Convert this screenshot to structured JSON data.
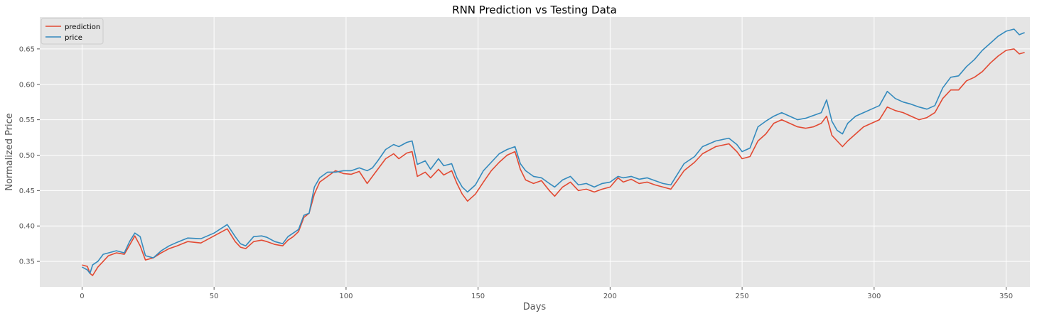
{
  "chart_data": {
    "type": "line",
    "title": "RNN Prediction vs Testing Data",
    "xlabel": "Days",
    "ylabel": "Normalized Price",
    "xlim": [
      -16,
      359
    ],
    "ylim": [
      0.314,
      0.695
    ],
    "xticks": [
      0,
      50,
      100,
      150,
      200,
      250,
      300,
      350
    ],
    "yticks": [
      0.35,
      0.4,
      0.45,
      0.5,
      0.55,
      0.6,
      0.65
    ],
    "grid": true,
    "legend": "top-left",
    "series": [
      {
        "name": "prediction",
        "color": "#E24A33",
        "points": [
          [
            0,
            0.345
          ],
          [
            2,
            0.343
          ],
          [
            3,
            0.333
          ],
          [
            4,
            0.33
          ],
          [
            6,
            0.342
          ],
          [
            8,
            0.35
          ],
          [
            10,
            0.358
          ],
          [
            13,
            0.362
          ],
          [
            16,
            0.36
          ],
          [
            18,
            0.373
          ],
          [
            20,
            0.386
          ],
          [
            22,
            0.372
          ],
          [
            24,
            0.352
          ],
          [
            27,
            0.355
          ],
          [
            30,
            0.362
          ],
          [
            33,
            0.368
          ],
          [
            36,
            0.372
          ],
          [
            40,
            0.378
          ],
          [
            45,
            0.376
          ],
          [
            50,
            0.386
          ],
          [
            55,
            0.396
          ],
          [
            58,
            0.378
          ],
          [
            60,
            0.37
          ],
          [
            62,
            0.368
          ],
          [
            65,
            0.378
          ],
          [
            68,
            0.38
          ],
          [
            70,
            0.378
          ],
          [
            73,
            0.374
          ],
          [
            76,
            0.372
          ],
          [
            78,
            0.38
          ],
          [
            80,
            0.385
          ],
          [
            82,
            0.392
          ],
          [
            84,
            0.412
          ],
          [
            86,
            0.418
          ],
          [
            88,
            0.445
          ],
          [
            90,
            0.462
          ],
          [
            93,
            0.47
          ],
          [
            96,
            0.478
          ],
          [
            99,
            0.474
          ],
          [
            102,
            0.473
          ],
          [
            105,
            0.477
          ],
          [
            108,
            0.46
          ],
          [
            110,
            0.47
          ],
          [
            112,
            0.48
          ],
          [
            115,
            0.495
          ],
          [
            118,
            0.502
          ],
          [
            120,
            0.495
          ],
          [
            123,
            0.503
          ],
          [
            125,
            0.505
          ],
          [
            127,
            0.47
          ],
          [
            130,
            0.476
          ],
          [
            132,
            0.468
          ],
          [
            135,
            0.48
          ],
          [
            137,
            0.472
          ],
          [
            140,
            0.478
          ],
          [
            142,
            0.46
          ],
          [
            144,
            0.445
          ],
          [
            146,
            0.435
          ],
          [
            149,
            0.445
          ],
          [
            152,
            0.462
          ],
          [
            155,
            0.478
          ],
          [
            158,
            0.49
          ],
          [
            161,
            0.5
          ],
          [
            164,
            0.505
          ],
          [
            166,
            0.48
          ],
          [
            168,
            0.465
          ],
          [
            171,
            0.46
          ],
          [
            174,
            0.464
          ],
          [
            177,
            0.45
          ],
          [
            179,
            0.442
          ],
          [
            182,
            0.455
          ],
          [
            185,
            0.462
          ],
          [
            188,
            0.45
          ],
          [
            191,
            0.452
          ],
          [
            194,
            0.448
          ],
          [
            197,
            0.452
          ],
          [
            200,
            0.455
          ],
          [
            203,
            0.468
          ],
          [
            205,
            0.462
          ],
          [
            208,
            0.466
          ],
          [
            211,
            0.46
          ],
          [
            214,
            0.462
          ],
          [
            217,
            0.458
          ],
          [
            220,
            0.455
          ],
          [
            223,
            0.452
          ],
          [
            225,
            0.462
          ],
          [
            228,
            0.478
          ],
          [
            232,
            0.49
          ],
          [
            235,
            0.502
          ],
          [
            240,
            0.512
          ],
          [
            245,
            0.516
          ],
          [
            248,
            0.505
          ],
          [
            250,
            0.495
          ],
          [
            253,
            0.498
          ],
          [
            256,
            0.52
          ],
          [
            259,
            0.53
          ],
          [
            262,
            0.545
          ],
          [
            265,
            0.55
          ],
          [
            268,
            0.545
          ],
          [
            271,
            0.54
          ],
          [
            274,
            0.538
          ],
          [
            277,
            0.54
          ],
          [
            280,
            0.545
          ],
          [
            282,
            0.555
          ],
          [
            284,
            0.528
          ],
          [
            286,
            0.52
          ],
          [
            288,
            0.512
          ],
          [
            290,
            0.52
          ],
          [
            293,
            0.53
          ],
          [
            296,
            0.54
          ],
          [
            299,
            0.545
          ],
          [
            302,
            0.55
          ],
          [
            305,
            0.568
          ],
          [
            308,
            0.563
          ],
          [
            311,
            0.56
          ],
          [
            314,
            0.555
          ],
          [
            317,
            0.55
          ],
          [
            320,
            0.553
          ],
          [
            323,
            0.56
          ],
          [
            326,
            0.58
          ],
          [
            329,
            0.592
          ],
          [
            332,
            0.592
          ],
          [
            335,
            0.605
          ],
          [
            338,
            0.61
          ],
          [
            341,
            0.618
          ],
          [
            344,
            0.63
          ],
          [
            347,
            0.64
          ],
          [
            350,
            0.648
          ],
          [
            353,
            0.65
          ],
          [
            355,
            0.643
          ],
          [
            357,
            0.645
          ]
        ]
      },
      {
        "name": "price",
        "color": "#348ABD",
        "points": [
          [
            0,
            0.342
          ],
          [
            2,
            0.338
          ],
          [
            3,
            0.333
          ],
          [
            4,
            0.345
          ],
          [
            6,
            0.35
          ],
          [
            8,
            0.36
          ],
          [
            10,
            0.362
          ],
          [
            13,
            0.365
          ],
          [
            16,
            0.362
          ],
          [
            18,
            0.378
          ],
          [
            20,
            0.39
          ],
          [
            22,
            0.385
          ],
          [
            24,
            0.358
          ],
          [
            27,
            0.355
          ],
          [
            30,
            0.365
          ],
          [
            33,
            0.372
          ],
          [
            36,
            0.377
          ],
          [
            40,
            0.383
          ],
          [
            45,
            0.382
          ],
          [
            50,
            0.39
          ],
          [
            55,
            0.402
          ],
          [
            58,
            0.385
          ],
          [
            60,
            0.375
          ],
          [
            62,
            0.372
          ],
          [
            65,
            0.385
          ],
          [
            68,
            0.386
          ],
          [
            70,
            0.384
          ],
          [
            73,
            0.378
          ],
          [
            76,
            0.375
          ],
          [
            78,
            0.385
          ],
          [
            80,
            0.39
          ],
          [
            82,
            0.395
          ],
          [
            84,
            0.415
          ],
          [
            86,
            0.418
          ],
          [
            88,
            0.455
          ],
          [
            90,
            0.468
          ],
          [
            93,
            0.476
          ],
          [
            96,
            0.476
          ],
          [
            99,
            0.478
          ],
          [
            102,
            0.478
          ],
          [
            105,
            0.482
          ],
          [
            108,
            0.478
          ],
          [
            110,
            0.482
          ],
          [
            112,
            0.492
          ],
          [
            115,
            0.508
          ],
          [
            118,
            0.515
          ],
          [
            120,
            0.512
          ],
          [
            123,
            0.518
          ],
          [
            125,
            0.52
          ],
          [
            127,
            0.487
          ],
          [
            130,
            0.492
          ],
          [
            132,
            0.48
          ],
          [
            135,
            0.495
          ],
          [
            137,
            0.485
          ],
          [
            140,
            0.488
          ],
          [
            142,
            0.468
          ],
          [
            144,
            0.455
          ],
          [
            146,
            0.448
          ],
          [
            149,
            0.458
          ],
          [
            152,
            0.478
          ],
          [
            155,
            0.49
          ],
          [
            158,
            0.502
          ],
          [
            161,
            0.508
          ],
          [
            164,
            0.512
          ],
          [
            166,
            0.488
          ],
          [
            168,
            0.478
          ],
          [
            171,
            0.47
          ],
          [
            174,
            0.468
          ],
          [
            177,
            0.46
          ],
          [
            179,
            0.455
          ],
          [
            182,
            0.465
          ],
          [
            185,
            0.47
          ],
          [
            188,
            0.458
          ],
          [
            191,
            0.46
          ],
          [
            194,
            0.455
          ],
          [
            197,
            0.46
          ],
          [
            200,
            0.462
          ],
          [
            203,
            0.47
          ],
          [
            205,
            0.468
          ],
          [
            208,
            0.47
          ],
          [
            211,
            0.466
          ],
          [
            214,
            0.468
          ],
          [
            217,
            0.464
          ],
          [
            220,
            0.46
          ],
          [
            223,
            0.458
          ],
          [
            225,
            0.47
          ],
          [
            228,
            0.488
          ],
          [
            232,
            0.498
          ],
          [
            235,
            0.512
          ],
          [
            240,
            0.52
          ],
          [
            245,
            0.524
          ],
          [
            248,
            0.515
          ],
          [
            250,
            0.505
          ],
          [
            253,
            0.51
          ],
          [
            256,
            0.54
          ],
          [
            259,
            0.548
          ],
          [
            262,
            0.555
          ],
          [
            265,
            0.56
          ],
          [
            268,
            0.555
          ],
          [
            271,
            0.55
          ],
          [
            274,
            0.552
          ],
          [
            277,
            0.556
          ],
          [
            280,
            0.56
          ],
          [
            282,
            0.578
          ],
          [
            284,
            0.548
          ],
          [
            286,
            0.535
          ],
          [
            288,
            0.53
          ],
          [
            290,
            0.545
          ],
          [
            293,
            0.555
          ],
          [
            296,
            0.56
          ],
          [
            299,
            0.565
          ],
          [
            302,
            0.57
          ],
          [
            305,
            0.59
          ],
          [
            308,
            0.58
          ],
          [
            311,
            0.575
          ],
          [
            314,
            0.572
          ],
          [
            317,
            0.568
          ],
          [
            320,
            0.565
          ],
          [
            323,
            0.57
          ],
          [
            326,
            0.595
          ],
          [
            329,
            0.61
          ],
          [
            332,
            0.612
          ],
          [
            335,
            0.625
          ],
          [
            338,
            0.635
          ],
          [
            341,
            0.648
          ],
          [
            344,
            0.658
          ],
          [
            347,
            0.668
          ],
          [
            350,
            0.675
          ],
          [
            353,
            0.678
          ],
          [
            355,
            0.67
          ],
          [
            357,
            0.673
          ]
        ]
      }
    ]
  }
}
